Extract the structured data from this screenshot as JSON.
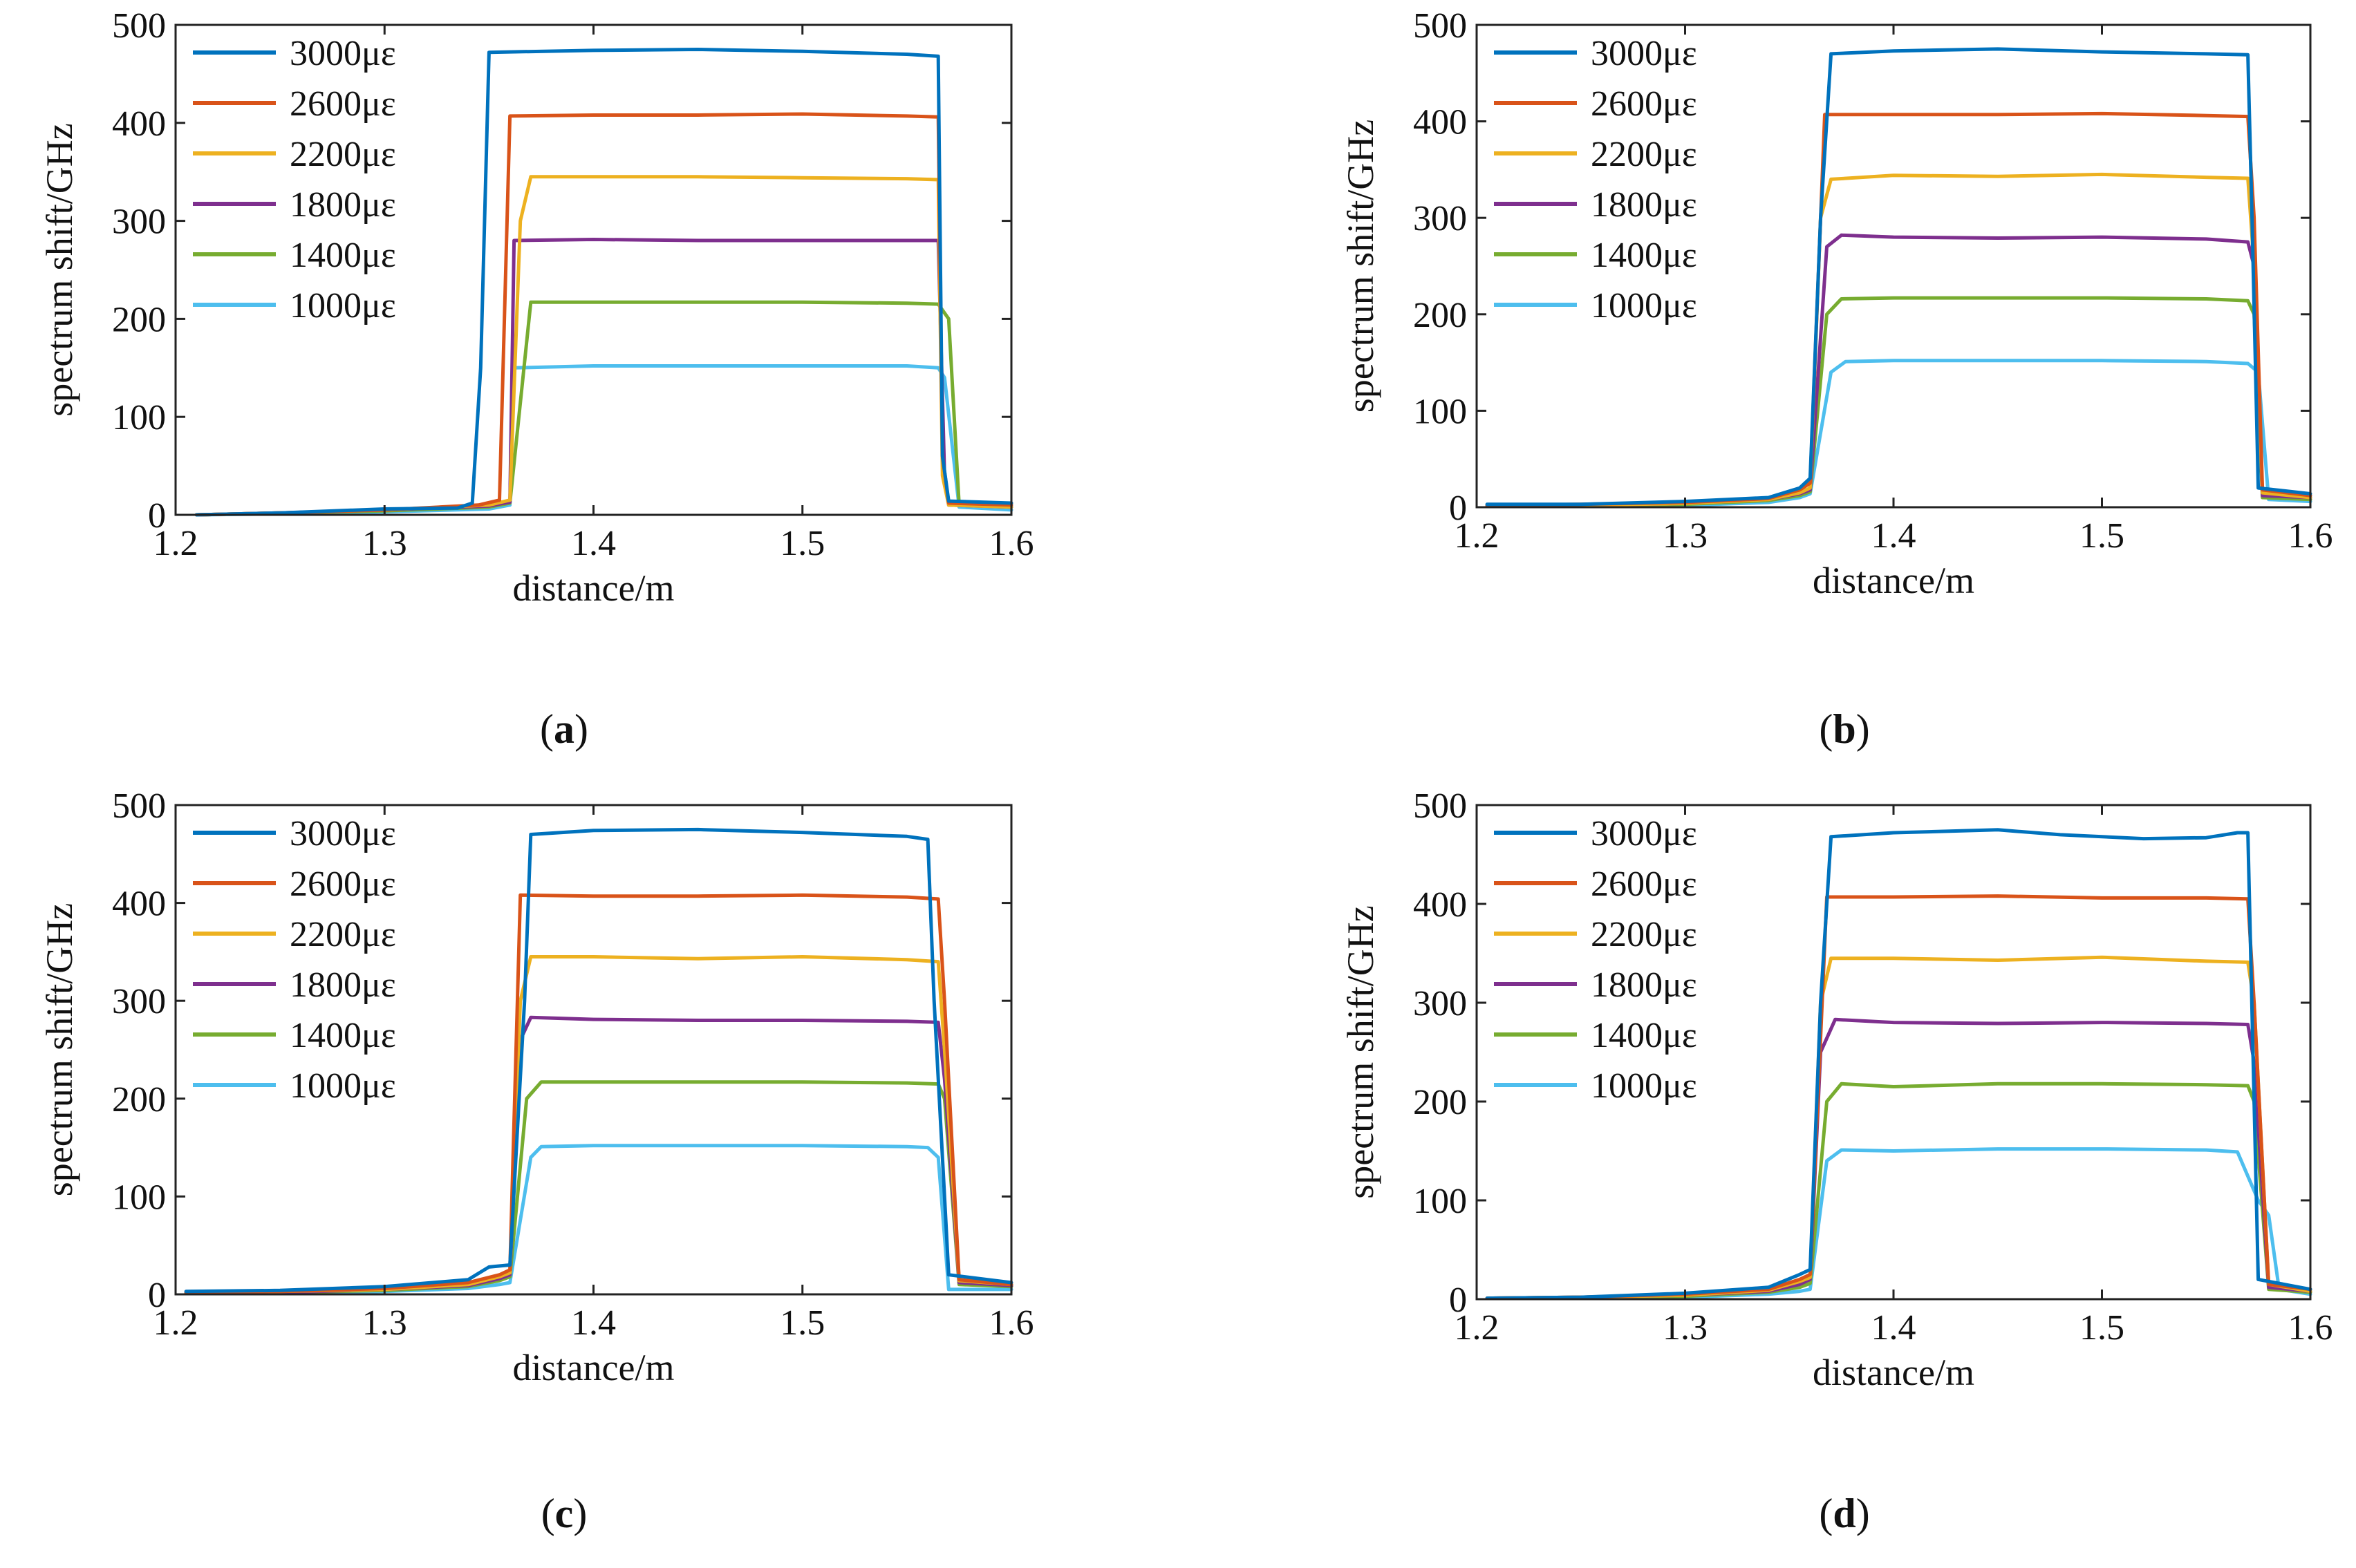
{
  "figure": {
    "series_colors": {
      "3000με": "#0072BD",
      "2600με": "#D95319",
      "2200με": "#EDB120",
      "1800με": "#7E2F8E",
      "1400με": "#77AC30",
      "1000με": "#4DBEEE"
    }
  },
  "chart_data": [
    {
      "type": "line",
      "caption_open": "(",
      "caption_letter": "a",
      "caption_close": ")",
      "title": "",
      "xlabel": "distance/m",
      "ylabel": "spectrum shift/GHz",
      "xlim": [
        1.2,
        1.6
      ],
      "ylim": [
        0,
        500
      ],
      "xticks": [
        "1.2",
        "1.3",
        "1.4",
        "1.5",
        "1.6"
      ],
      "yticks": [
        "0",
        "100",
        "200",
        "300",
        "400",
        "500"
      ],
      "legend_position": "top-left",
      "series": [
        {
          "name": "3000με",
          "x": [
            1.21,
            1.25,
            1.3,
            1.335,
            1.342,
            1.346,
            1.35,
            1.4,
            1.45,
            1.5,
            1.55,
            1.565,
            1.567,
            1.57,
            1.6
          ],
          "y": [
            0,
            2,
            6,
            7,
            12,
            150,
            472,
            474,
            475,
            473,
            470,
            468,
            60,
            14,
            12
          ]
        },
        {
          "name": "2600με",
          "x": [
            1.21,
            1.25,
            1.3,
            1.345,
            1.355,
            1.36,
            1.4,
            1.45,
            1.5,
            1.55,
            1.565,
            1.567,
            1.57,
            1.6
          ],
          "y": [
            0,
            2,
            5,
            10,
            15,
            407,
            408,
            408,
            409,
            407,
            406,
            60,
            12,
            10
          ]
        },
        {
          "name": "2200με",
          "x": [
            1.21,
            1.25,
            1.3,
            1.35,
            1.36,
            1.365,
            1.37,
            1.4,
            1.45,
            1.5,
            1.55,
            1.565,
            1.567,
            1.57,
            1.6
          ],
          "y": [
            0,
            2,
            5,
            10,
            15,
            300,
            345,
            345,
            345,
            344,
            343,
            342,
            40,
            10,
            8
          ]
        },
        {
          "name": "1800με",
          "x": [
            1.21,
            1.25,
            1.3,
            1.35,
            1.36,
            1.362,
            1.4,
            1.45,
            1.5,
            1.55,
            1.565,
            1.568,
            1.57,
            1.6
          ],
          "y": [
            0,
            2,
            5,
            9,
            13,
            280,
            281,
            280,
            280,
            280,
            280,
            40,
            10,
            8
          ]
        },
        {
          "name": "1400με",
          "x": [
            1.21,
            1.25,
            1.3,
            1.35,
            1.36,
            1.37,
            1.4,
            1.45,
            1.5,
            1.55,
            1.565,
            1.57,
            1.575,
            1.6
          ],
          "y": [
            0,
            2,
            4,
            8,
            12,
            217,
            217,
            217,
            217,
            216,
            215,
            200,
            10,
            8
          ]
        },
        {
          "name": "1000με",
          "x": [
            1.21,
            1.25,
            1.3,
            1.35,
            1.36,
            1.362,
            1.4,
            1.45,
            1.5,
            1.55,
            1.565,
            1.568,
            1.575,
            1.6
          ],
          "y": [
            0,
            1,
            3,
            6,
            10,
            150,
            152,
            152,
            152,
            152,
            150,
            140,
            8,
            5
          ]
        }
      ]
    },
    {
      "type": "line",
      "caption_open": "(",
      "caption_letter": "b",
      "caption_close": ")",
      "title": "",
      "xlabel": "distance/m",
      "ylabel": "spectrum shift/GHz",
      "xlim": [
        1.2,
        1.6
      ],
      "ylim": [
        0,
        500
      ],
      "xticks": [
        "1.2",
        "1.3",
        "1.4",
        "1.5",
        "1.6"
      ],
      "yticks": [
        "0",
        "100",
        "200",
        "300",
        "400",
        "500"
      ],
      "legend_position": "top-left",
      "series": [
        {
          "name": "3000με",
          "x": [
            1.205,
            1.25,
            1.3,
            1.34,
            1.355,
            1.36,
            1.365,
            1.37,
            1.4,
            1.45,
            1.5,
            1.55,
            1.57,
            1.572,
            1.575,
            1.6
          ],
          "y": [
            3,
            3,
            6,
            10,
            20,
            30,
            300,
            470,
            473,
            475,
            472,
            470,
            469,
            300,
            20,
            14
          ]
        },
        {
          "name": "2600με",
          "x": [
            1.205,
            1.25,
            1.3,
            1.34,
            1.355,
            1.36,
            1.367,
            1.4,
            1.45,
            1.5,
            1.55,
            1.57,
            1.573,
            1.577,
            1.6
          ],
          "y": [
            2,
            3,
            5,
            9,
            18,
            25,
            407,
            407,
            407,
            408,
            406,
            405,
            300,
            18,
            12
          ]
        },
        {
          "name": "2200με",
          "x": [
            1.205,
            1.25,
            1.3,
            1.34,
            1.355,
            1.36,
            1.365,
            1.37,
            1.4,
            1.45,
            1.5,
            1.55,
            1.57,
            1.573,
            1.577,
            1.6
          ],
          "y": [
            2,
            2,
            4,
            8,
            15,
            20,
            300,
            340,
            344,
            343,
            345,
            342,
            341,
            250,
            15,
            10
          ]
        },
        {
          "name": "1800με",
          "x": [
            1.205,
            1.25,
            1.3,
            1.34,
            1.355,
            1.36,
            1.368,
            1.375,
            1.4,
            1.45,
            1.5,
            1.55,
            1.57,
            1.573,
            1.577,
            1.6
          ],
          "y": [
            2,
            2,
            4,
            8,
            14,
            18,
            270,
            282,
            280,
            279,
            280,
            278,
            275,
            250,
            12,
            10
          ]
        },
        {
          "name": "1400με",
          "x": [
            1.205,
            1.25,
            1.3,
            1.34,
            1.355,
            1.36,
            1.368,
            1.375,
            1.4,
            1.45,
            1.5,
            1.55,
            1.57,
            1.573,
            1.577,
            1.6
          ],
          "y": [
            1,
            2,
            3,
            7,
            12,
            16,
            200,
            216,
            217,
            217,
            217,
            216,
            214,
            200,
            10,
            8
          ]
        },
        {
          "name": "1000με",
          "x": [
            1.205,
            1.25,
            1.3,
            1.34,
            1.355,
            1.36,
            1.37,
            1.377,
            1.4,
            1.45,
            1.5,
            1.55,
            1.57,
            1.575,
            1.58,
            1.6
          ],
          "y": [
            1,
            1,
            2,
            5,
            10,
            14,
            140,
            151,
            152,
            152,
            152,
            151,
            149,
            140,
            8,
            6
          ]
        }
      ]
    },
    {
      "type": "line",
      "caption_open": "(",
      "caption_letter": "c",
      "caption_close": ")",
      "title": "",
      "xlabel": "distance/m",
      "ylabel": "spectrum shift/GHz",
      "xlim": [
        1.2,
        1.6
      ],
      "ylim": [
        0,
        500
      ],
      "xticks": [
        "1.2",
        "1.3",
        "1.4",
        "1.5",
        "1.6"
      ],
      "yticks": [
        "0",
        "100",
        "200",
        "300",
        "400",
        "500"
      ],
      "legend_position": "top-left",
      "series": [
        {
          "name": "3000με",
          "x": [
            1.205,
            1.25,
            1.3,
            1.34,
            1.35,
            1.36,
            1.367,
            1.37,
            1.4,
            1.45,
            1.5,
            1.55,
            1.56,
            1.563,
            1.57,
            1.6
          ],
          "y": [
            3,
            4,
            8,
            15,
            28,
            30,
            300,
            470,
            474,
            475,
            472,
            468,
            465,
            300,
            20,
            12
          ]
        },
        {
          "name": "2600με",
          "x": [
            1.205,
            1.25,
            1.3,
            1.34,
            1.355,
            1.36,
            1.365,
            1.4,
            1.45,
            1.5,
            1.55,
            1.565,
            1.568,
            1.575,
            1.6
          ],
          "y": [
            2,
            3,
            6,
            12,
            20,
            25,
            408,
            407,
            407,
            408,
            406,
            404,
            300,
            15,
            10
          ]
        },
        {
          "name": "2200με",
          "x": [
            1.205,
            1.25,
            1.3,
            1.34,
            1.355,
            1.36,
            1.365,
            1.37,
            1.4,
            1.45,
            1.5,
            1.55,
            1.565,
            1.568,
            1.575,
            1.6
          ],
          "y": [
            2,
            3,
            5,
            10,
            18,
            22,
            300,
            345,
            345,
            343,
            345,
            342,
            340,
            250,
            14,
            10
          ]
        },
        {
          "name": "1800με",
          "x": [
            1.205,
            1.25,
            1.3,
            1.34,
            1.355,
            1.36,
            1.365,
            1.37,
            1.4,
            1.45,
            1.5,
            1.55,
            1.565,
            1.568,
            1.575,
            1.6
          ],
          "y": [
            2,
            2,
            5,
            9,
            16,
            20,
            260,
            283,
            281,
            280,
            280,
            279,
            278,
            220,
            12,
            9
          ]
        },
        {
          "name": "1400με",
          "x": [
            1.205,
            1.25,
            1.3,
            1.34,
            1.355,
            1.36,
            1.368,
            1.375,
            1.4,
            1.45,
            1.5,
            1.55,
            1.565,
            1.568,
            1.575,
            1.6
          ],
          "y": [
            1,
            2,
            4,
            8,
            14,
            18,
            200,
            217,
            217,
            217,
            217,
            216,
            215,
            200,
            10,
            8
          ]
        },
        {
          "name": "1000με",
          "x": [
            1.205,
            1.25,
            1.3,
            1.34,
            1.355,
            1.36,
            1.37,
            1.375,
            1.4,
            1.45,
            1.5,
            1.55,
            1.56,
            1.565,
            1.57,
            1.6
          ],
          "y": [
            1,
            1,
            3,
            6,
            10,
            12,
            140,
            151,
            152,
            152,
            152,
            151,
            150,
            140,
            5,
            5
          ]
        }
      ]
    },
    {
      "type": "line",
      "caption_open": "(",
      "caption_letter": "d",
      "caption_close": ")",
      "title": "",
      "xlabel": "distance/m",
      "ylabel": "spectrum shift/GHz",
      "xlim": [
        1.2,
        1.6
      ],
      "ylim": [
        0,
        500
      ],
      "xticks": [
        "1.2",
        "1.3",
        "1.4",
        "1.5",
        "1.6"
      ],
      "yticks": [
        "0",
        "100",
        "200",
        "300",
        "400",
        "500"
      ],
      "legend_position": "top-left",
      "series": [
        {
          "name": "3000με",
          "x": [
            1.205,
            1.25,
            1.3,
            1.34,
            1.355,
            1.36,
            1.365,
            1.37,
            1.4,
            1.45,
            1.48,
            1.52,
            1.55,
            1.565,
            1.57,
            1.575,
            1.6
          ],
          "y": [
            1,
            2,
            6,
            12,
            25,
            30,
            300,
            468,
            472,
            475,
            470,
            466,
            467,
            472,
            472,
            20,
            10
          ]
        },
        {
          "name": "2600με",
          "x": [
            1.205,
            1.25,
            1.3,
            1.34,
            1.355,
            1.36,
            1.368,
            1.4,
            1.45,
            1.5,
            1.55,
            1.57,
            1.573,
            1.58,
            1.6
          ],
          "y": [
            1,
            2,
            5,
            10,
            20,
            25,
            407,
            407,
            408,
            406,
            406,
            405,
            300,
            15,
            10
          ]
        },
        {
          "name": "2200με",
          "x": [
            1.205,
            1.25,
            1.3,
            1.34,
            1.355,
            1.36,
            1.365,
            1.37,
            1.4,
            1.45,
            1.5,
            1.55,
            1.57,
            1.573,
            1.58,
            1.6
          ],
          "y": [
            1,
            2,
            4,
            9,
            18,
            22,
            300,
            345,
            345,
            343,
            346,
            342,
            341,
            300,
            15,
            8
          ]
        },
        {
          "name": "1800με",
          "x": [
            1.205,
            1.25,
            1.3,
            1.34,
            1.355,
            1.36,
            1.365,
            1.372,
            1.4,
            1.45,
            1.5,
            1.55,
            1.57,
            1.573,
            1.58,
            1.6
          ],
          "y": [
            1,
            2,
            4,
            8,
            15,
            20,
            250,
            283,
            280,
            279,
            280,
            279,
            278,
            240,
            12,
            8
          ]
        },
        {
          "name": "1400με",
          "x": [
            1.205,
            1.25,
            1.3,
            1.34,
            1.355,
            1.36,
            1.368,
            1.375,
            1.4,
            1.45,
            1.5,
            1.55,
            1.57,
            1.573,
            1.58,
            1.6
          ],
          "y": [
            1,
            1,
            3,
            7,
            12,
            16,
            200,
            218,
            215,
            218,
            218,
            217,
            216,
            200,
            10,
            7
          ]
        },
        {
          "name": "1000με",
          "x": [
            1.205,
            1.25,
            1.3,
            1.34,
            1.355,
            1.36,
            1.368,
            1.375,
            1.4,
            1.45,
            1.5,
            1.55,
            1.565,
            1.575,
            1.58,
            1.585,
            1.6
          ],
          "y": [
            1,
            1,
            2,
            5,
            8,
            10,
            140,
            151,
            150,
            152,
            152,
            151,
            149,
            100,
            85,
            10,
            5
          ]
        }
      ]
    }
  ]
}
